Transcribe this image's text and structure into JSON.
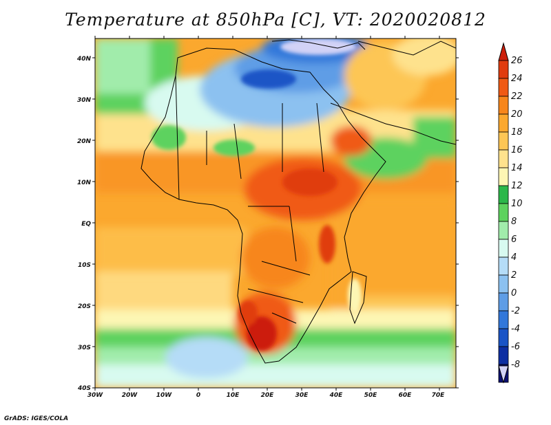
{
  "title": "Temperature at 850hPa [C], VT: 2020020812",
  "credit": "GrADS: IGES/COLA",
  "map": {
    "lat_labels": [
      "40N",
      "30N",
      "20N",
      "10N",
      "EQ",
      "10S",
      "20S",
      "30S",
      "40S"
    ],
    "lon_labels": [
      "30W",
      "20W",
      "10W",
      "0",
      "10E",
      "20E",
      "30E",
      "40E",
      "50E",
      "60E",
      "70E"
    ],
    "lat_range": [
      -40,
      45
    ],
    "lon_range": [
      -30,
      75
    ],
    "field": "Temperature at 850hPa",
    "units": "C"
  },
  "colorbar": {
    "labels": [
      "26",
      "24",
      "22",
      "20",
      "18",
      "16",
      "14",
      "12",
      "10",
      "8",
      "6",
      "4",
      "2",
      "0",
      "-2",
      "-4",
      "-6",
      "-8"
    ],
    "colors": [
      "#cc1e0a",
      "#e03c0f",
      "#f05a14",
      "#f7861b",
      "#fba82e",
      "#fdc655",
      "#fee28d",
      "#fdf6b4",
      "#2bb74a",
      "#5dd25e",
      "#a1ecab",
      "#d8faf0",
      "#b5dcf7",
      "#8cc1f0",
      "#5e9de6",
      "#3278da",
      "#1a54c6",
      "#0d2ea2",
      "#0a0f70",
      "#d2d2f6"
    ],
    "top_color": "#cc1e0a",
    "bottom_color": "#d2d2f6"
  }
}
